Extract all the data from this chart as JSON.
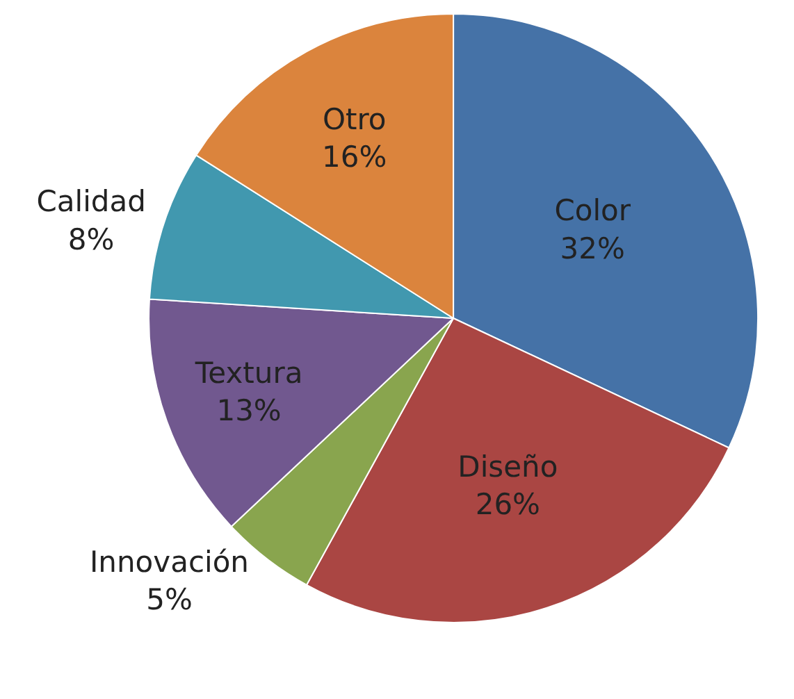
{
  "chart_data": {
    "type": "pie",
    "categories": [
      "Color",
      "Diseño",
      "Innovación",
      "Textura",
      "Calidad",
      "Otro"
    ],
    "values": [
      32,
      26,
      5,
      13,
      8,
      16
    ],
    "value_labels": [
      "32%",
      "26%",
      "5%",
      "13%",
      "8%",
      "16%"
    ],
    "colors": [
      "#4572a7",
      "#aa4643",
      "#89a54e",
      "#71588f",
      "#4198af",
      "#db843d"
    ],
    "legend": false
  }
}
